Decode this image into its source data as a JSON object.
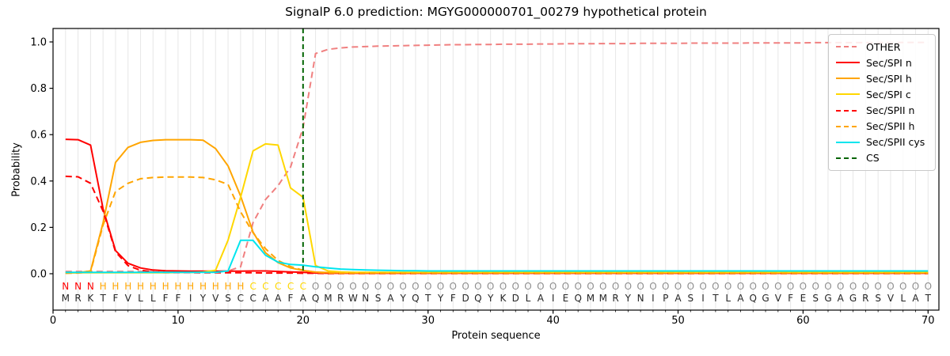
{
  "chart_data": {
    "type": "line",
    "title": "SignalP 6.0 prediction: MGYG000000701_00279 hypothetical protein",
    "xlabel": "Protein sequence",
    "ylabel": "Probability",
    "xticks": [
      0,
      10,
      20,
      30,
      40,
      50,
      60,
      70
    ],
    "ytick_labels": [
      "0.0",
      "0.2",
      "0.4",
      "0.6",
      "0.8",
      "1.0"
    ],
    "ylim": [
      0,
      1.05
    ],
    "n_residues": 70,
    "grid": "vertical line at every residue position",
    "legend_position": "upper right",
    "sequence": "MRKTFVLLFFIYVSCCAAFAQMRWNSAYQTYFDQYKDLAIEQMMRYNIPASITLAQGVFESGAGRSVLAT",
    "regions": "NNNHHHHHHHHHHHHCCCCCOOOOOOOOOOOOOOOOOOOOOOOOOOOOOOOOOOOOOOOOOOOOOOOOOO",
    "region_colors": {
      "N": "#ff0000",
      "H": "#ffa500",
      "C": "#ffd700",
      "O": "#8f8f8f"
    },
    "sequence_color": "#262626",
    "cs_line": {
      "label": "CS",
      "style": "dashed",
      "color": "#006400",
      "position": 20
    },
    "series": [
      {
        "name": "OTHER",
        "style": "dashed",
        "color": "#f08080",
        "values": [
          0.01,
          0.01,
          0.01,
          0.01,
          0.01,
          0.01,
          0.01,
          0.01,
          0.01,
          0.01,
          0.01,
          0.01,
          0.01,
          0.012,
          0.03,
          0.22,
          0.32,
          0.38,
          0.46,
          0.63,
          0.95,
          0.968,
          0.974,
          0.978,
          0.98,
          0.982,
          0.983,
          0.984,
          0.985,
          0.986,
          0.987,
          0.988,
          0.988,
          0.989,
          0.989,
          0.99,
          0.99,
          0.99,
          0.991,
          0.991,
          0.992,
          0.992,
          0.992,
          0.993,
          0.993,
          0.993,
          0.994,
          0.994,
          0.994,
          0.994,
          0.995,
          0.995,
          0.995,
          0.995,
          0.995,
          0.996,
          0.996,
          0.996,
          0.996,
          0.996,
          0.997,
          0.997,
          0.997,
          0.997,
          0.997,
          0.997,
          0.997,
          0.998,
          0.998,
          0.998
        ]
      },
      {
        "name": "Sec/SPI n",
        "style": "solid",
        "color": "#ff0000",
        "values": [
          0.58,
          0.578,
          0.555,
          0.28,
          0.1,
          0.045,
          0.025,
          0.016,
          0.013,
          0.012,
          0.011,
          0.011,
          0.011,
          0.011,
          0.011,
          0.012,
          0.012,
          0.01,
          0.008,
          0.006,
          0.003,
          0.002,
          0.002,
          0.002,
          0.002,
          0.002,
          0.002,
          0.002,
          0.002,
          0.002,
          0.002,
          0.002,
          0.002,
          0.002,
          0.002,
          0.002,
          0.002,
          0.002,
          0.002,
          0.002,
          0.002,
          0.002,
          0.002,
          0.002,
          0.002,
          0.002,
          0.002,
          0.002,
          0.002,
          0.002,
          0.002,
          0.002,
          0.002,
          0.002,
          0.002,
          0.002,
          0.002,
          0.002,
          0.002,
          0.002,
          0.002,
          0.002,
          0.002,
          0.002,
          0.002,
          0.002,
          0.002,
          0.002,
          0.002,
          0.002
        ]
      },
      {
        "name": "Sec/SPI h",
        "style": "solid",
        "color": "#ffa500",
        "values": [
          0.003,
          0.004,
          0.012,
          0.22,
          0.48,
          0.545,
          0.567,
          0.575,
          0.578,
          0.578,
          0.578,
          0.576,
          0.54,
          0.465,
          0.335,
          0.18,
          0.09,
          0.048,
          0.025,
          0.014,
          0.007,
          0.005,
          0.004,
          0.004,
          0.004,
          0.004,
          0.004,
          0.004,
          0.004,
          0.004,
          0.004,
          0.004,
          0.004,
          0.004,
          0.004,
          0.004,
          0.004,
          0.004,
          0.004,
          0.004,
          0.004,
          0.004,
          0.004,
          0.004,
          0.004,
          0.004,
          0.004,
          0.004,
          0.004,
          0.004,
          0.004,
          0.004,
          0.004,
          0.004,
          0.004,
          0.004,
          0.004,
          0.004,
          0.004,
          0.004,
          0.004,
          0.004,
          0.004,
          0.004,
          0.004,
          0.004,
          0.004,
          0.004,
          0.004,
          0.004
        ]
      },
      {
        "name": "Sec/SPI c",
        "style": "solid",
        "color": "#ffd700",
        "values": [
          0.004,
          0.004,
          0.004,
          0.004,
          0.004,
          0.004,
          0.004,
          0.004,
          0.004,
          0.005,
          0.005,
          0.007,
          0.015,
          0.145,
          0.33,
          0.53,
          0.56,
          0.555,
          0.37,
          0.33,
          0.035,
          0.012,
          0.008,
          0.006,
          0.006,
          0.006,
          0.006,
          0.006,
          0.006,
          0.006,
          0.006,
          0.006,
          0.006,
          0.006,
          0.006,
          0.006,
          0.006,
          0.006,
          0.006,
          0.006,
          0.006,
          0.006,
          0.006,
          0.006,
          0.006,
          0.006,
          0.006,
          0.006,
          0.006,
          0.006,
          0.006,
          0.006,
          0.006,
          0.006,
          0.006,
          0.006,
          0.006,
          0.006,
          0.006,
          0.006,
          0.006,
          0.006,
          0.006,
          0.006,
          0.006,
          0.006,
          0.006,
          0.006,
          0.006,
          0.006
        ]
      },
      {
        "name": "Sec/SPII n",
        "style": "dashed",
        "color": "#ff0000",
        "values": [
          0.42,
          0.418,
          0.39,
          0.27,
          0.095,
          0.035,
          0.015,
          0.008,
          0.006,
          0.005,
          0.005,
          0.004,
          0.004,
          0.004,
          0.004,
          0.004,
          0.003,
          0.003,
          0.003,
          0.002,
          0.002,
          0.001,
          0.001,
          0.001,
          0.001,
          0.001,
          0.001,
          0.001,
          0.001,
          0.001,
          0.001,
          0.001,
          0.001,
          0.001,
          0.001,
          0.001,
          0.001,
          0.001,
          0.001,
          0.001,
          0.001,
          0.001,
          0.001,
          0.001,
          0.001,
          0.001,
          0.001,
          0.001,
          0.001,
          0.001,
          0.001,
          0.001,
          0.001,
          0.001,
          0.001,
          0.001,
          0.001,
          0.001,
          0.001,
          0.001,
          0.001,
          0.001,
          0.001,
          0.001,
          0.001,
          0.001,
          0.001,
          0.001,
          0.001,
          0.001
        ]
      },
      {
        "name": "Sec/SPII h",
        "style": "dashed",
        "color": "#ffa500",
        "values": [
          0.002,
          0.003,
          0.008,
          0.21,
          0.355,
          0.39,
          0.41,
          0.415,
          0.417,
          0.417,
          0.417,
          0.415,
          0.405,
          0.385,
          0.267,
          0.177,
          0.108,
          0.057,
          0.031,
          0.015,
          0.006,
          0.003,
          0.002,
          0.002,
          0.002,
          0.002,
          0.002,
          0.002,
          0.002,
          0.002,
          0.002,
          0.002,
          0.002,
          0.002,
          0.002,
          0.002,
          0.002,
          0.002,
          0.002,
          0.002,
          0.002,
          0.002,
          0.002,
          0.002,
          0.002,
          0.002,
          0.002,
          0.002,
          0.002,
          0.002,
          0.002,
          0.002,
          0.002,
          0.002,
          0.002,
          0.002,
          0.002,
          0.002,
          0.002,
          0.002,
          0.002,
          0.002,
          0.002,
          0.002,
          0.002,
          0.002,
          0.002,
          0.002,
          0.002,
          0.002
        ]
      },
      {
        "name": "Sec/SPII cys",
        "style": "solid",
        "color": "#00e5ee",
        "values": [
          0.006,
          0.006,
          0.006,
          0.006,
          0.006,
          0.006,
          0.006,
          0.006,
          0.006,
          0.006,
          0.006,
          0.006,
          0.006,
          0.012,
          0.144,
          0.144,
          0.08,
          0.05,
          0.04,
          0.037,
          0.03,
          0.025,
          0.02,
          0.018,
          0.016,
          0.015,
          0.014,
          0.013,
          0.013,
          0.012,
          0.012,
          0.012,
          0.012,
          0.012,
          0.012,
          0.012,
          0.012,
          0.012,
          0.012,
          0.012,
          0.012,
          0.012,
          0.012,
          0.012,
          0.012,
          0.012,
          0.012,
          0.012,
          0.012,
          0.012,
          0.012,
          0.012,
          0.012,
          0.012,
          0.012,
          0.012,
          0.012,
          0.012,
          0.012,
          0.012,
          0.012,
          0.012,
          0.012,
          0.012,
          0.012,
          0.012,
          0.012,
          0.012,
          0.012,
          0.012
        ]
      }
    ]
  }
}
